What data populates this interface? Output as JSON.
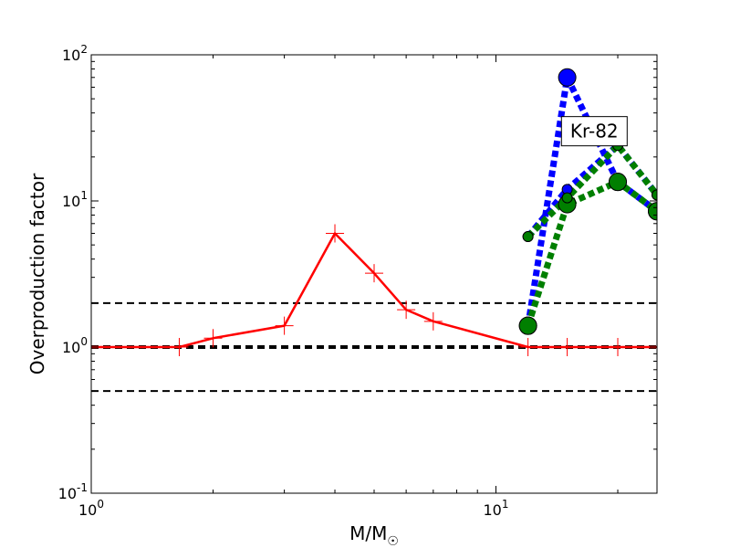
{
  "chart_data": {
    "type": "line",
    "xscale": "log",
    "yscale": "log",
    "xlim": [
      1,
      25
    ],
    "ylim": [
      0.1,
      100
    ],
    "xlabel": "M/M",
    "xlabel_sub": "☉",
    "ylabel": "Overproduction factor",
    "x_ticks": [
      {
        "value": 1,
        "base": "10",
        "exp": "0"
      },
      {
        "value": 10,
        "base": "10",
        "exp": "1"
      }
    ],
    "y_ticks": [
      {
        "value": 0.1,
        "base": "10",
        "exp": "-1"
      },
      {
        "value": 1,
        "base": "10",
        "exp": "0"
      },
      {
        "value": 10,
        "base": "10",
        "exp": "1"
      },
      {
        "value": 100,
        "base": "10",
        "exp": "2"
      }
    ],
    "reference_lines": [
      {
        "y": 2,
        "width": 2
      },
      {
        "y": 1,
        "width": 4
      },
      {
        "y": 0.5,
        "width": 2
      }
    ],
    "annotation": {
      "text": "Kr-82",
      "x": 17.5,
      "y": 30
    },
    "series": [
      {
        "color": "#ff0000",
        "style": "solid",
        "marker": "plus",
        "width": 2.5,
        "x": [
          1,
          1.65,
          2,
          3,
          4,
          5,
          6,
          7,
          12,
          15,
          20,
          25
        ],
        "y": [
          1.0,
          1.0,
          1.15,
          1.4,
          6.0,
          3.2,
          1.8,
          1.5,
          1.0,
          1.0,
          1.0,
          1.0
        ]
      },
      {
        "color": "#0000ff",
        "style": "dotted",
        "marker": "circle-large",
        "width": 7,
        "x": [
          12,
          15,
          20,
          25
        ],
        "y": [
          1.4,
          70,
          13.5,
          8.5
        ]
      },
      {
        "color": "#0000ff",
        "style": "dotted",
        "marker": "circle-small",
        "width": 7,
        "x": [
          12,
          15,
          20,
          25
        ],
        "y": [
          5.7,
          12,
          24,
          11
        ]
      },
      {
        "color": "#007f00",
        "style": "dotted",
        "marker": "circle-large",
        "width": 7,
        "x": [
          12,
          15,
          20,
          25
        ],
        "y": [
          1.4,
          9.5,
          13.5,
          8.5
        ]
      },
      {
        "color": "#007f00",
        "style": "dotted",
        "marker": "circle-small",
        "width": 7,
        "x": [
          12,
          15,
          20,
          25
        ],
        "y": [
          5.7,
          10.5,
          24,
          11
        ]
      }
    ]
  }
}
